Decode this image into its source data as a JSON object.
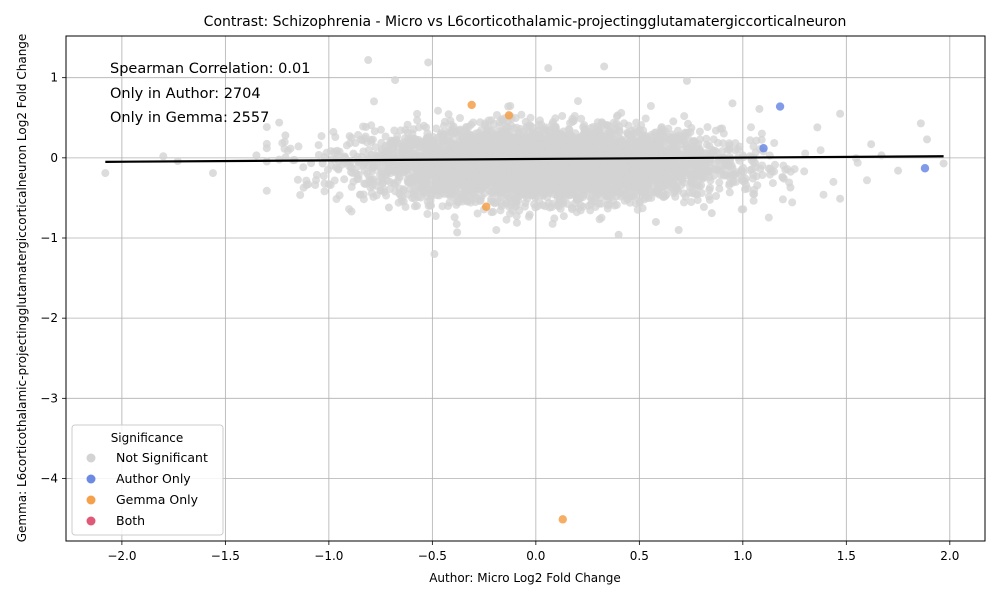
{
  "chart_data": {
    "type": "scatter",
    "title": "Contrast: Schizophrenia - Micro vs L6corticothalamic-projectingglutamatergiccorticalneuron",
    "xlabel": "Author: Micro Log2 Fold Change",
    "ylabel": "Gemma: L6corticothalamic-projectingglutamatergiccorticalneuron Log2 Fold Change",
    "xlim": [
      -2.27,
      2.17
    ],
    "ylim": [
      -4.78,
      1.52
    ],
    "x_ticks": [
      -2.0,
      -1.5,
      -1.0,
      -0.5,
      0.0,
      0.5,
      1.0,
      1.5,
      2.0
    ],
    "x_tick_labels": [
      "−2.0",
      "−1.5",
      "−1.0",
      "−0.5",
      "0.0",
      "0.5",
      "1.0",
      "1.5",
      "2.0"
    ],
    "y_ticks": [
      -4,
      -3,
      -2,
      -1,
      0,
      1
    ],
    "y_tick_labels": [
      "−4",
      "−3",
      "−2",
      "−1",
      "0",
      "1"
    ],
    "grid": true,
    "annotations": [
      "Spearman Correlation: 0.01",
      "Only in Author: 2704",
      "Only in Gemma: 2557"
    ],
    "legend": {
      "title": "Significance",
      "placement": "lower-left",
      "entries": [
        {
          "label": "Not Significant",
          "color": "#d3d3d3"
        },
        {
          "label": "Author Only",
          "color": "#6c8ae4"
        },
        {
          "label": "Gemma Only",
          "color": "#f5a04a"
        },
        {
          "label": "Both",
          "color": "#e05a78"
        }
      ]
    },
    "regression_line": {
      "x": [
        -2.08,
        1.97
      ],
      "y": [
        -0.05,
        0.02
      ],
      "color": "#000000"
    },
    "series": [
      {
        "name": "Author Only",
        "color": "#6c8ae4",
        "points": [
          [
            1.18,
            0.64
          ],
          [
            1.1,
            0.12
          ],
          [
            1.88,
            -0.13
          ]
        ]
      },
      {
        "name": "Gemma Only",
        "color": "#f5a04a",
        "points": [
          [
            -0.31,
            0.66
          ],
          [
            -0.13,
            0.53
          ],
          [
            -0.24,
            -0.61
          ],
          [
            0.13,
            -4.51
          ]
        ]
      }
    ],
    "not_significant": {
      "color": "#d3d3d3",
      "n_cluster_points": 5200,
      "cluster_center": [
        0.05,
        -0.08
      ],
      "cluster_sd": [
        0.42,
        0.22
      ],
      "extra_points": [
        [
          -2.08,
          -0.19
        ],
        [
          -1.56,
          -0.19
        ],
        [
          -0.81,
          1.22
        ],
        [
          -0.52,
          1.19
        ],
        [
          -0.49,
          -1.2
        ],
        [
          0.33,
          1.14
        ],
        [
          0.06,
          1.12
        ],
        [
          -0.68,
          0.97
        ],
        [
          0.73,
          0.96
        ],
        [
          -1.3,
          0.12
        ],
        [
          -1.21,
          0.28
        ],
        [
          1.86,
          0.43
        ],
        [
          1.89,
          0.23
        ],
        [
          1.97,
          -0.07
        ],
        [
          1.75,
          -0.16
        ],
        [
          1.47,
          -0.51
        ],
        [
          1.62,
          0.17
        ],
        [
          1.47,
          0.55
        ],
        [
          1.36,
          0.38
        ],
        [
          0.69,
          -0.9
        ],
        [
          0.4,
          -0.96
        ],
        [
          -0.38,
          -0.93
        ],
        [
          -0.71,
          -0.62
        ],
        [
          0.58,
          -0.8
        ],
        [
          0.85,
          -0.69
        ],
        [
          1.23,
          -0.37
        ],
        [
          1.05,
          -0.21
        ],
        [
          -1.0,
          -0.33
        ],
        [
          -1.35,
          0.03
        ],
        [
          -1.8,
          0.02
        ],
        [
          -1.73,
          -0.04
        ],
        [
          -1.24,
          0.44
        ],
        [
          0.95,
          0.68
        ],
        [
          1.08,
          0.61
        ],
        [
          1.67,
          0.03
        ]
      ]
    }
  }
}
